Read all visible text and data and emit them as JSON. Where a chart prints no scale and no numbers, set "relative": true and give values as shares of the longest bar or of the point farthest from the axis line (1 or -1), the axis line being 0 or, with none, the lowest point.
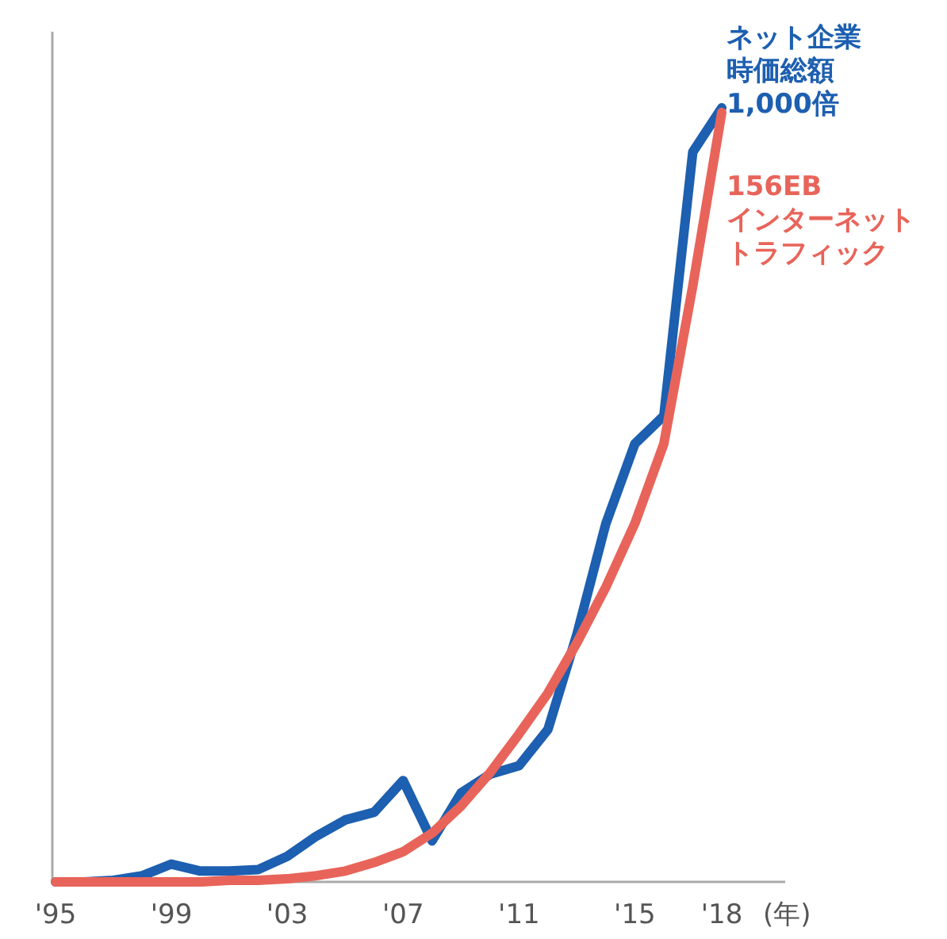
{
  "chart_data": {
    "type": "line",
    "relative": true,
    "xlabel": "(年)",
    "categories": [
      "'95",
      null,
      null,
      null,
      "'99",
      null,
      null,
      null,
      "'03",
      null,
      null,
      null,
      "'07",
      null,
      null,
      null,
      "'11",
      null,
      null,
      null,
      "'15",
      null,
      null,
      "'18"
    ],
    "series": [
      {
        "name": "ネット企業時価総額\n1,000倍",
        "color": "#1d5fb0",
        "values": [
          0,
          0,
          0.002,
          0.008,
          0.023,
          0.014,
          0.014,
          0.016,
          0.033,
          0.059,
          0.08,
          0.09,
          0.131,
          0.053,
          0.115,
          0.139,
          0.15,
          0.197,
          0.32,
          0.463,
          0.566,
          0.602,
          0.943,
          1
        ]
      },
      {
        "name": "156EB\nインターネットトラフィック",
        "color": "#e8645a",
        "values": [
          0,
          0,
          0,
          0,
          0,
          0,
          0.002,
          0.002,
          0.004,
          0.008,
          0.014,
          0.025,
          0.039,
          0.063,
          0.098,
          0.141,
          0.191,
          0.244,
          0.309,
          0.381,
          0.463,
          0.566,
          0.77,
          0.994
        ]
      }
    ],
    "legend": false
  }
}
